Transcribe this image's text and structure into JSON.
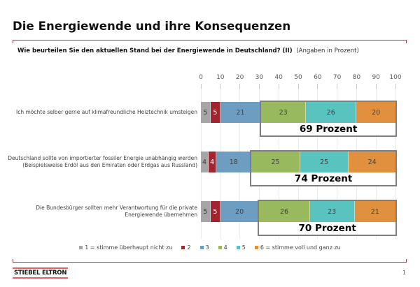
{
  "page": {
    "title": "Die Energiewende und ihre Konsequenzen",
    "question_bold": "Wie beurteilen Sie den aktuellen Stand bei der Energiewende in Deutschland? (II)",
    "question_suffix": "(Angaben in Prozent)",
    "footer_logo": "STIEBEL ELTRON",
    "page_number": "1"
  },
  "colors": {
    "bracket_red": "#b43936",
    "logo_red": "#e2645c",
    "annotation_border": "#7f7f7f",
    "grid": "#ececec",
    "axis_text": "#595959",
    "label_text": "#404040"
  },
  "chart_data": {
    "type": "bar",
    "orientation": "horizontal",
    "stacked": true,
    "title": "Wie beurteilen Sie den aktuellen Stand bei der Energiewende in Deutschland? (II)",
    "xlabel": "",
    "ylabel": "",
    "xlim": [
      0,
      100
    ],
    "x_ticks": [
      0,
      10,
      20,
      30,
      40,
      50,
      60,
      70,
      80,
      90,
      100
    ],
    "grid": true,
    "legend_position": "bottom",
    "categories": [
      "Ich möchte selber gerne auf klimafreundliche Heiztechnik umsteigen",
      "Deutschland sollte von importierter fossiler Energie unabhängig werden (Beispielsweise Erdöl aus den Emiraten oder Erdgas aus Russland)",
      "Die Bundesbürger sollten mehr Verantwortung für die private Energiewende übernehmen"
    ],
    "category_lines": [
      [
        "Ich möchte selber gerne auf klimafreundliche Heiztechnik umsteigen"
      ],
      [
        "Deutschland sollte von importierter fossiler Energie unabhängig werden",
        "(Beispielsweise Erdöl aus den Emiraten oder Erdgas aus Russland)"
      ],
      [
        "Die Bundesbürger sollten mehr Verantwortung für die private",
        "Energiewende übernehmen"
      ]
    ],
    "series": [
      {
        "name": "1 = stimme überhaupt nicht zu",
        "color": "#a6a6a6",
        "text_color": "#404040",
        "values": [
          5,
          4,
          5
        ]
      },
      {
        "name": "2",
        "color": "#a2242f",
        "text_color": "#ffffff",
        "values": [
          5,
          4,
          5
        ]
      },
      {
        "name": "3",
        "color": "#6d9dc1",
        "text_color": "#404040",
        "values": [
          21,
          18,
          20
        ]
      },
      {
        "name": "4",
        "color": "#99b95f",
        "text_color": "#404040",
        "values": [
          23,
          25,
          26
        ]
      },
      {
        "name": "5",
        "color": "#59c3bf",
        "text_color": "#404040",
        "values": [
          26,
          25,
          23
        ]
      },
      {
        "name": "6 = stimme voll und ganz zu",
        "color": "#e1913d",
        "text_color": "#404040",
        "values": [
          20,
          24,
          21
        ]
      }
    ],
    "annotations": [
      {
        "label": "69 Prozent",
        "from": 31,
        "to": 100
      },
      {
        "label": "74 Prozent",
        "from": 26,
        "to": 100
      },
      {
        "label": "70 Prozent",
        "from": 30,
        "to": 100
      }
    ]
  }
}
